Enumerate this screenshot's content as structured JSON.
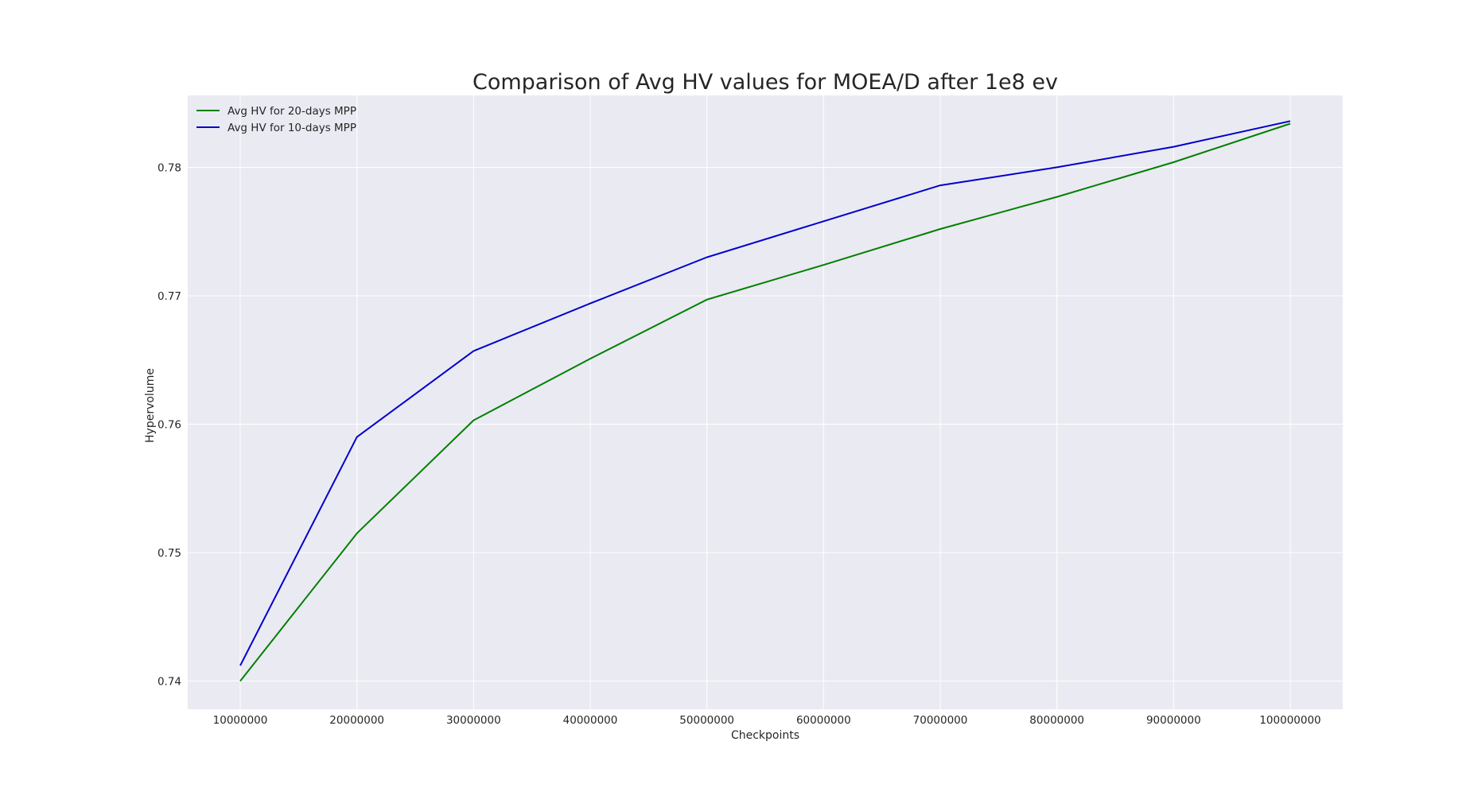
{
  "chart_data": {
    "type": "line",
    "title": "Comparison of Avg HV values for MOEA/D after 1e8 ev",
    "xlabel": "Checkpoints",
    "ylabel": "Hypervolume",
    "x": [
      10000000,
      20000000,
      30000000,
      40000000,
      50000000,
      60000000,
      70000000,
      80000000,
      90000000,
      100000000
    ],
    "x_tick_labels": [
      "10000000",
      "20000000",
      "30000000",
      "40000000",
      "50000000",
      "60000000",
      "70000000",
      "80000000",
      "90000000",
      "100000000"
    ],
    "y_ticks": [
      0.74,
      0.75,
      0.76,
      0.77,
      0.78
    ],
    "y_tick_labels": [
      "0.74",
      "0.75",
      "0.76",
      "0.77",
      "0.78"
    ],
    "xlim": [
      5500000,
      104500000
    ],
    "ylim": [
      0.7378,
      0.7856
    ],
    "grid": true,
    "legend_position": "top-left",
    "background_color": "#eaeaf2",
    "grid_color": "#ffffff",
    "series": [
      {
        "name": "Avg HV for 20-days MPP",
        "color": "#008000",
        "values": [
          0.74,
          0.7515,
          0.7603,
          0.7651,
          0.7697,
          0.7724,
          0.7752,
          0.7777,
          0.7804,
          0.7834
        ]
      },
      {
        "name": "Avg HV for 10-days MPP",
        "color": "#0000cc",
        "values": [
          0.7412,
          0.759,
          0.7657,
          0.7694,
          0.773,
          0.7758,
          0.7786,
          0.78,
          0.7816,
          0.7836
        ]
      }
    ]
  }
}
